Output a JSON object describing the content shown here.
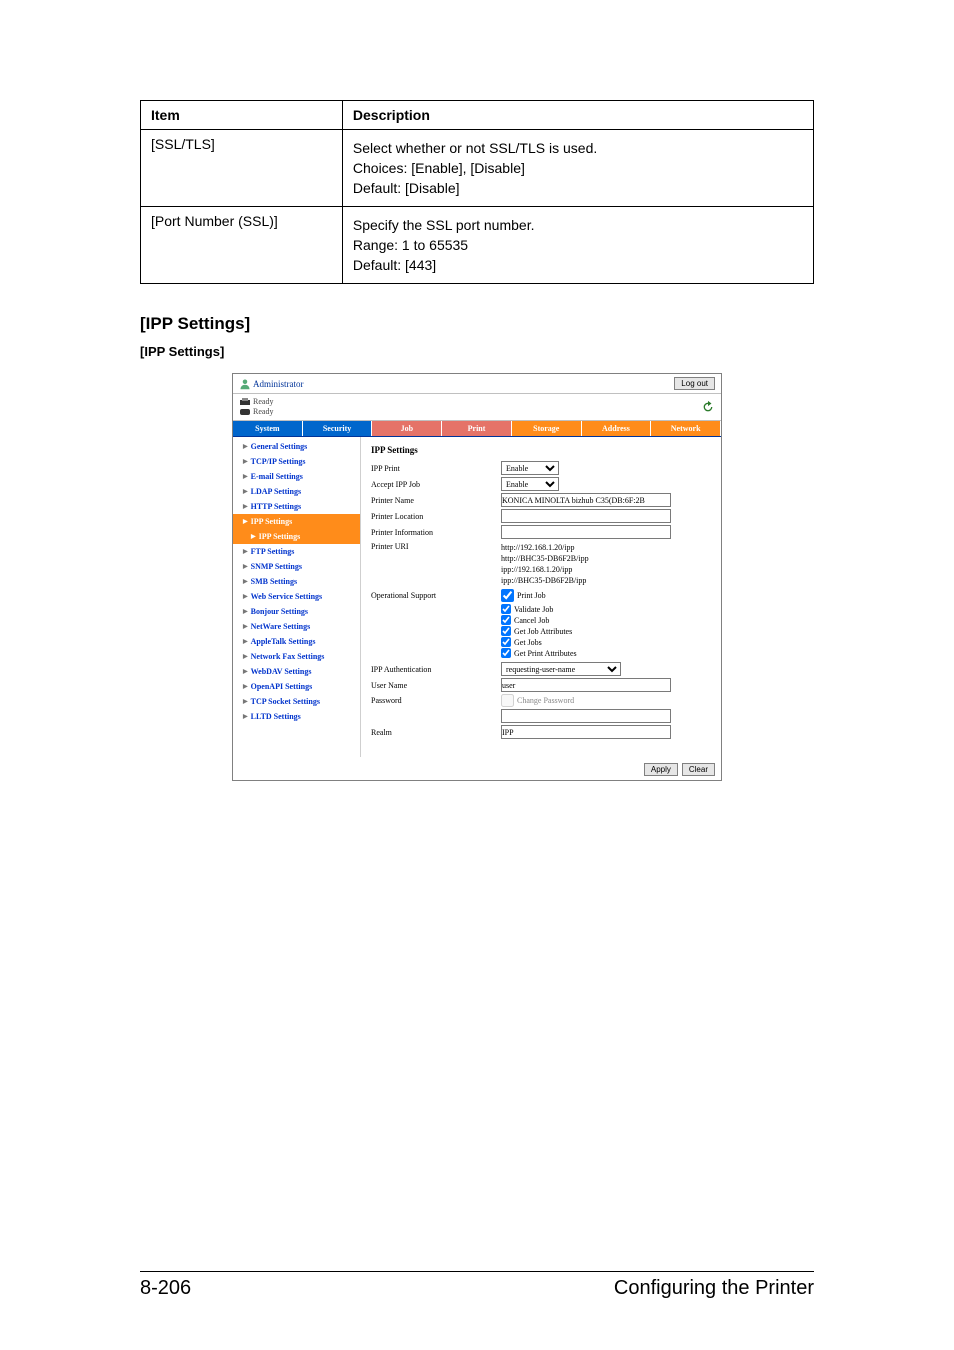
{
  "spec_table": {
    "headers": [
      "Item",
      "Description"
    ],
    "rows": [
      {
        "item": "[SSL/TLS]",
        "lines": [
          "Select whether or not SSL/TLS is used.",
          "Choices: [Enable], [Disable]",
          "Default: [Disable]"
        ]
      },
      {
        "item": "[Port Number (SSL)]",
        "lines": [
          "Specify the SSL port number.",
          "Range: 1 to 65535",
          "Default: [443]"
        ]
      }
    ]
  },
  "section_title": "[IPP Settings]",
  "subsection_title": "[IPP Settings]",
  "screenshot": {
    "admin_label": "Administrator",
    "logout": "Log out",
    "ready": "Ready",
    "tabs": [
      "System",
      "Security",
      "Job",
      "Print",
      "Storage",
      "Address",
      "Network"
    ],
    "sidebar": [
      {
        "label": "General Settings"
      },
      {
        "label": "TCP/IP Settings"
      },
      {
        "label": "E-mail Settings"
      },
      {
        "label": "LDAP Settings"
      },
      {
        "label": "HTTP Settings"
      },
      {
        "label": "IPP Settings",
        "selected": true
      },
      {
        "label": "IPP Settings",
        "selected": true,
        "child": true
      },
      {
        "label": "FTP Settings"
      },
      {
        "label": "SNMP Settings"
      },
      {
        "label": "SMB Settings"
      },
      {
        "label": "Web Service Settings"
      },
      {
        "label": "Bonjour Settings"
      },
      {
        "label": "NetWare Settings"
      },
      {
        "label": "AppleTalk Settings"
      },
      {
        "label": "Network Fax Settings"
      },
      {
        "label": "WebDAV Settings"
      },
      {
        "label": "OpenAPI Settings"
      },
      {
        "label": "TCP Socket Settings"
      },
      {
        "label": "LLTD Settings"
      }
    ],
    "content": {
      "heading": "IPP Settings",
      "ipp_print_label": "IPP Print",
      "ipp_print_value": "Enable",
      "accept_label": "Accept IPP Job",
      "accept_value": "Enable",
      "printer_name_label": "Printer Name",
      "printer_name_value": "KONICA MINOLTA bizhub C35(DB:6F:2B",
      "printer_location_label": "Printer Location",
      "printer_location_value": "",
      "printer_info_label": "Printer Information",
      "printer_info_value": "",
      "printer_uri_label": "Printer URI",
      "uris": [
        "http://192.168.1.20/ipp",
        "http://BHC35-DB6F2B/ipp",
        "ipp://192.168.1.20/ipp",
        "ipp://BHC35-DB6F2B/ipp"
      ],
      "op_support_label": "Operational Support",
      "ops": [
        "Print Job",
        "Validate Job",
        "Cancel Job",
        "Get Job Attributes",
        "Get Jobs",
        "Get Print Attributes"
      ],
      "ipp_auth_label": "IPP Authentication",
      "ipp_auth_value": "requesting-user-name",
      "user_name_label": "User Name",
      "user_name_value": "user",
      "password_label": "Password",
      "change_password_label": "Change Password",
      "realm_label": "Realm",
      "realm_value": "IPP",
      "apply": "Apply",
      "clear": "Clear"
    }
  },
  "footer": {
    "left": "8-206",
    "right": "Configuring the Printer"
  }
}
